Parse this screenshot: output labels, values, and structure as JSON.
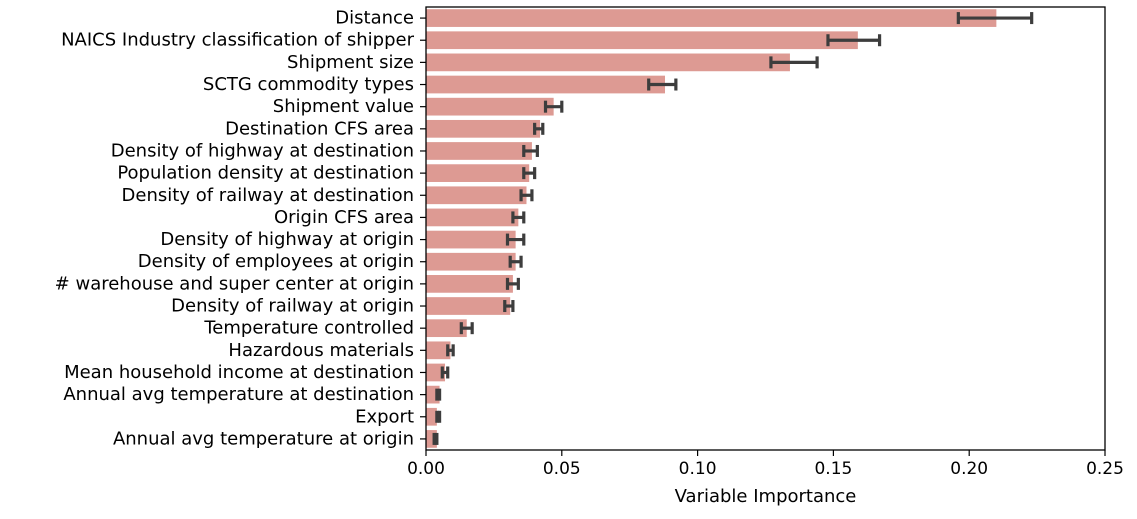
{
  "chart_data": {
    "type": "bar",
    "orientation": "horizontal",
    "title": "",
    "xlabel": "Variable Importance",
    "ylabel": "",
    "xlim": [
      0.0,
      0.25
    ],
    "xticks": [
      "0.00",
      "0.05",
      "0.10",
      "0.15",
      "0.20",
      "0.25"
    ],
    "grid": false,
    "legend": "none",
    "colors": {
      "bar": "#dd9a93",
      "error_bar": "#3d3d3d",
      "axis": "#000000"
    },
    "categories": [
      "Distance",
      "NAICS Industry classification of shipper",
      "Shipment size",
      "SCTG commodity types",
      "Shipment value",
      "Destination CFS area",
      "Density of highway at destination",
      "Population density at destination",
      "Density of railway at destination",
      "Origin CFS area",
      "Density of highway at origin",
      "Density of employees at origin",
      "# warehouse and super center at origin",
      "Density of railway at origin",
      "Temperature controlled",
      "Hazardous materials",
      "Mean household income at destination",
      "Annual avg temperature at destination",
      "Export",
      "Annual avg temperature at origin"
    ],
    "values": [
      0.21,
      0.159,
      0.134,
      0.088,
      0.047,
      0.042,
      0.039,
      0.038,
      0.037,
      0.034,
      0.033,
      0.033,
      0.032,
      0.031,
      0.015,
      0.009,
      0.007,
      0.005,
      0.004,
      0.004
    ],
    "error_low": [
      0.196,
      0.148,
      0.127,
      0.082,
      0.044,
      0.04,
      0.036,
      0.036,
      0.035,
      0.032,
      0.03,
      0.031,
      0.03,
      0.029,
      0.013,
      0.008,
      0.006,
      0.004,
      0.004,
      0.003
    ],
    "error_high": [
      0.223,
      0.167,
      0.144,
      0.092,
      0.05,
      0.043,
      0.041,
      0.04,
      0.039,
      0.036,
      0.036,
      0.035,
      0.034,
      0.032,
      0.017,
      0.01,
      0.008,
      0.005,
      0.005,
      0.004
    ]
  }
}
